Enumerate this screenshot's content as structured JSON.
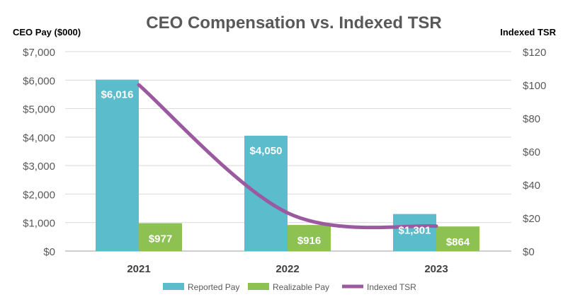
{
  "chart_data": {
    "type": "bar",
    "title": "CEO Compensation vs. Indexed TSR",
    "ylabel_left": "CEO Pay ($000)",
    "ylabel_right": "Indexed TSR",
    "categories": [
      "2021",
      "2022",
      "2023"
    ],
    "ylim_left": [
      0,
      7000
    ],
    "ylim_right": [
      0,
      120
    ],
    "yticks_left": [
      "$0",
      "$1,000",
      "$2,000",
      "$3,000",
      "$4,000",
      "$5,000",
      "$6,000",
      "$7,000"
    ],
    "yticks_right": [
      "$0",
      "$20",
      "$40",
      "$60",
      "$80",
      "$100",
      "$120"
    ],
    "grid": true,
    "legend_placement": "bottom",
    "series": [
      {
        "name": "Reported Pay",
        "type": "bar",
        "axis": "left",
        "color": "#5bbccc",
        "values": [
          6016,
          4050,
          1301
        ],
        "labels": [
          "$6,016",
          "$4,050",
          "$1,301"
        ]
      },
      {
        "name": "Realizable Pay",
        "type": "bar",
        "axis": "left",
        "color": "#8dc152",
        "values": [
          977,
          916,
          864
        ],
        "labels": [
          "$977",
          "$916",
          "$864"
        ]
      },
      {
        "name": "Indexed TSR",
        "type": "line",
        "axis": "right",
        "color": "#9b59a0",
        "values": [
          100,
          23,
          15
        ]
      }
    ]
  }
}
